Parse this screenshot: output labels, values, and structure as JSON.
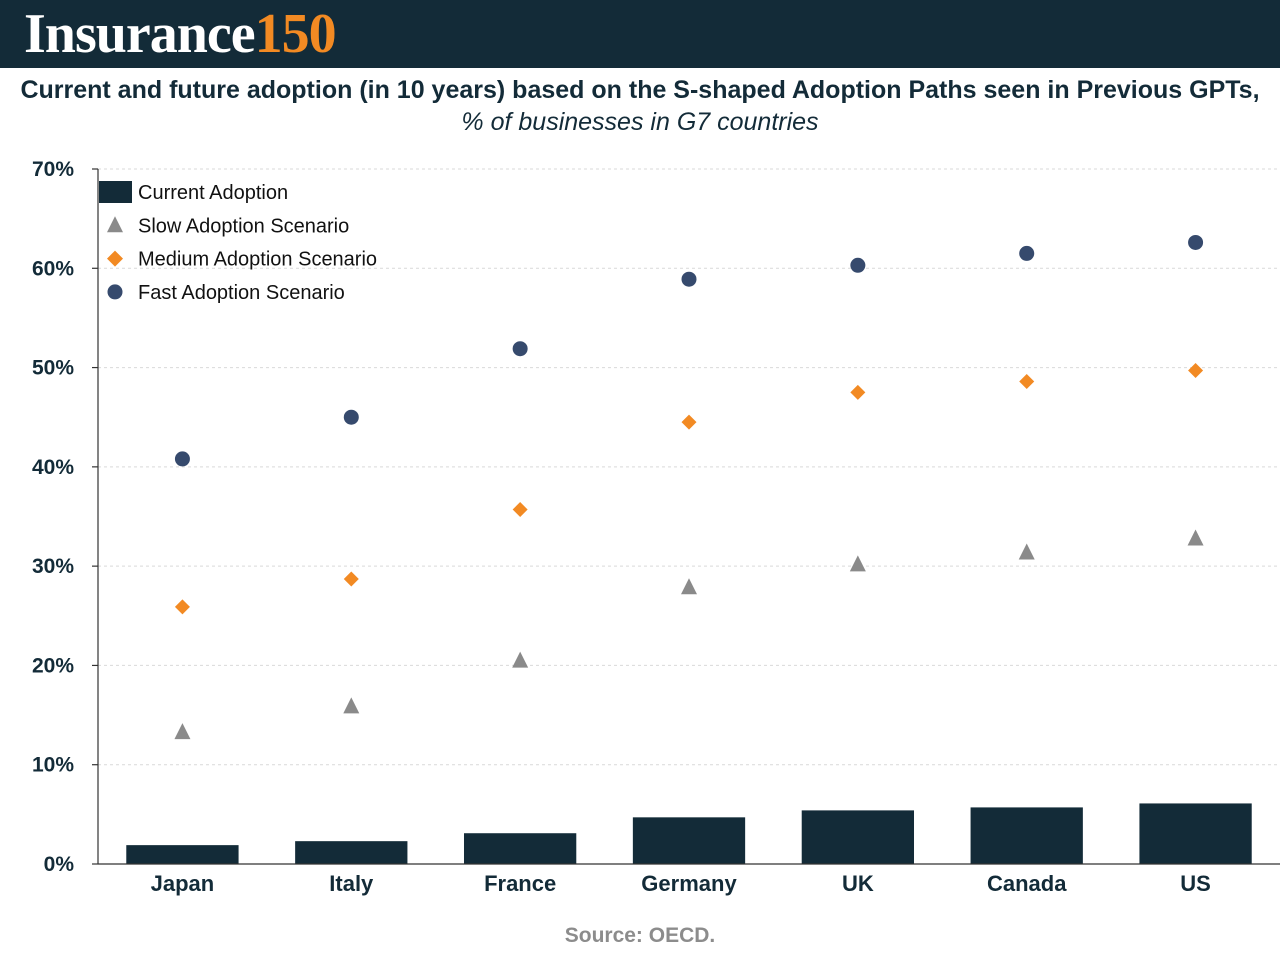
{
  "header": {
    "logo_word": "Insurance",
    "logo_number": "150",
    "background_color": "#132b38",
    "logo_accent_color": "#f28a23"
  },
  "title": {
    "main": "Current and future adoption (in 10 years) based on the S-shaped Adoption Paths seen in Previous GPTs,",
    "subtitle": "% of businesses in G7 countries"
  },
  "footer": {
    "source": "Source: OECD."
  },
  "chart_data": {
    "type": "bar",
    "title": "Current and future adoption (in 10 years) based on the S-shaped Adoption Paths seen in Previous GPTs",
    "subtitle": "% of businesses in G7 countries",
    "xlabel": "",
    "ylabel": "",
    "categories": [
      "Japan",
      "Italy",
      "France",
      "Germany",
      "UK",
      "Canada",
      "US"
    ],
    "ylim": [
      0,
      70
    ],
    "yticks": [
      0,
      10,
      20,
      30,
      40,
      50,
      60,
      70
    ],
    "ytick_labels": [
      "0%",
      "10%",
      "20%",
      "30%",
      "40%",
      "50%",
      "60%",
      "70%"
    ],
    "grid": true,
    "legend_position": "top-left",
    "series": [
      {
        "name": "Current Adoption",
        "kind": "bar",
        "marker": "bar",
        "color": "#132b38",
        "values": [
          1.9,
          2.3,
          3.1,
          4.7,
          5.4,
          5.7,
          6.1
        ]
      },
      {
        "name": "Slow Adoption Scenario",
        "kind": "scatter",
        "marker": "triangle",
        "color": "#8a8a8a",
        "values": [
          13.3,
          15.9,
          20.5,
          27.9,
          30.2,
          31.4,
          32.8
        ]
      },
      {
        "name": "Medium Adoption Scenario",
        "kind": "scatter",
        "marker": "diamond",
        "color": "#f28a23",
        "values": [
          25.9,
          28.7,
          35.7,
          44.5,
          47.5,
          48.6,
          49.7
        ]
      },
      {
        "name": "Fast Adoption Scenario",
        "kind": "scatter",
        "marker": "circle",
        "color": "#364a6d",
        "values": [
          40.8,
          45.0,
          51.9,
          58.9,
          60.3,
          61.5,
          62.6
        ]
      }
    ]
  }
}
